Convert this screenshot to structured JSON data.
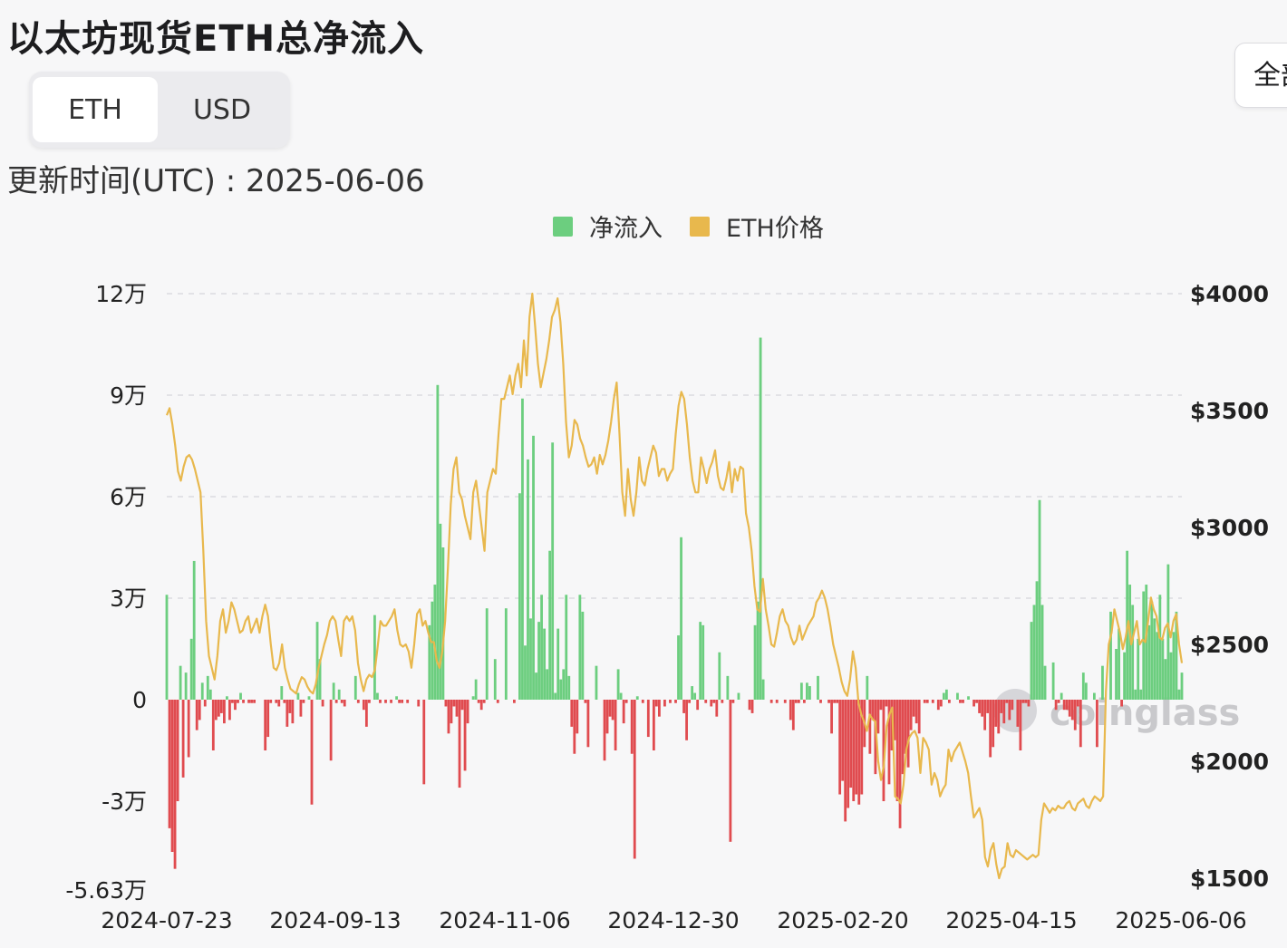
{
  "page": {
    "title": "以太坊现货ETH总净流入"
  },
  "toggle": {
    "eth_label": "ETH",
    "usd_label": "USD",
    "selected": "ETH"
  },
  "range": {
    "label": "全部"
  },
  "update": {
    "label": "更新时间(UTC)",
    "separator": " : ",
    "date": "2025-06-06"
  },
  "watermark": {
    "text": "coinglass"
  },
  "chart_data": {
    "type": "bar",
    "title": "以太坊现货ETH总净流入",
    "x_ticks": [
      "2024-07-23",
      "2024-09-13",
      "2024-11-06",
      "2024-12-30",
      "2025-02-20",
      "2025-04-15",
      "2025-06-06"
    ],
    "x_range": [
      "2024-07-23",
      "2025-06-06"
    ],
    "y_left": {
      "ticks": [
        120000,
        90000,
        60000,
        30000,
        0,
        -30000,
        -56300
      ],
      "tick_labels": [
        "12万",
        "9万",
        "6万",
        "3万",
        "0",
        "-3万",
        "-5.63万"
      ],
      "range": [
        -56300,
        120000
      ]
    },
    "y_right": {
      "ticks": [
        4000,
        3500,
        3000,
        2500,
        2000,
        1500
      ],
      "tick_labels": [
        "$4000",
        "$3500",
        "$3000",
        "$2500",
        "$2000",
        "$1500"
      ],
      "range": [
        1500,
        4000
      ]
    },
    "grid": true,
    "legend_position": "top-center",
    "colors": {
      "inflow": "#6cce7f",
      "outflow": "#e04b4f",
      "price": "#e8b84d"
    },
    "series": [
      {
        "name": "净流入",
        "kind": "bar",
        "axis": "left",
        "values": [
          31000,
          -38000,
          -45000,
          -50000,
          -30000,
          10000,
          -23000,
          8000,
          -17000,
          18000,
          41000,
          -9000,
          -6000,
          5000,
          -2000,
          7000,
          3000,
          -15000,
          -6000,
          -5000,
          -4000,
          -7000,
          1000,
          -6000,
          -1000,
          -3000,
          -1000,
          2000,
          -1000,
          0,
          -1000,
          -1000,
          -1000,
          0,
          0,
          0,
          -15000,
          -11000,
          -1000,
          0,
          -1000,
          -2000,
          4000,
          -1000,
          -8000,
          -4000,
          -7000,
          0,
          2000,
          -5000,
          -1000,
          0,
          1000,
          -31000,
          0,
          23000,
          12000,
          -2000,
          0,
          0,
          -18000,
          5000,
          -1000,
          3000,
          -1000,
          -2000,
          0,
          0,
          0,
          7000,
          -1000,
          0,
          -3000,
          -8000,
          -1000,
          0,
          25000,
          2000,
          -1000,
          0,
          -1000,
          0,
          -1000,
          0,
          1000,
          -1000,
          -1000,
          0,
          -1000,
          0,
          0,
          0,
          -2000,
          0,
          -25000,
          0,
          22000,
          29000,
          34000,
          93000,
          52000,
          45000,
          -2000,
          -10000,
          -7000,
          -2000,
          -5000,
          -26000,
          -3000,
          -21000,
          -7000,
          0,
          1000,
          6000,
          -1000,
          -3000,
          -1000,
          27000,
          0,
          0,
          12000,
          -1000,
          0,
          0,
          27000,
          0,
          0,
          -1000,
          0,
          61000,
          89000,
          16000,
          71000,
          24000,
          78000,
          8000,
          23000,
          31000,
          21000,
          9000,
          44000,
          76000,
          2000,
          21000,
          6000,
          9000,
          31000,
          7000,
          -8000,
          -16000,
          -10000,
          31000,
          26000,
          -1000,
          -14000,
          0,
          0,
          10000,
          0,
          0,
          -18000,
          -10000,
          -5000,
          -6000,
          -15000,
          9000,
          2000,
          -7000,
          -1000,
          0,
          -16000,
          -47000,
          1000,
          0,
          -1000,
          0,
          -11000,
          0,
          -15000,
          -2000,
          -5000,
          0,
          -2000,
          0,
          -1000,
          0,
          -1000,
          19000,
          48000,
          -4000,
          -12000,
          -1000,
          4000,
          2000,
          -3000,
          23000,
          22000,
          -1000,
          0,
          -2000,
          -1000,
          -5000,
          14000,
          -1000,
          0,
          7000,
          -42000,
          -1000,
          0,
          2000,
          0,
          0,
          0,
          -3000,
          -4000,
          22000,
          29000,
          107000,
          6000,
          0,
          0,
          -1000,
          0,
          -1000,
          0,
          0,
          -1000,
          0,
          -6000,
          -9000,
          -1000,
          -1000,
          5000,
          -1000,
          5000,
          4000,
          0,
          0,
          7000,
          -1000,
          0,
          0,
          -1000,
          -10000,
          -1000,
          -1000,
          -28000,
          -24000,
          -36000,
          -32000,
          -26000,
          -30000,
          -28000,
          -31000,
          -28000,
          -14000,
          7000,
          -16000,
          -6000,
          -22000,
          -10000,
          -3000,
          -30000,
          -2000,
          -25000,
          -15000,
          -12000,
          -30000,
          -38000,
          -22000,
          -16000,
          -20000,
          -9000,
          -5000,
          -7000,
          -10000,
          0,
          -1000,
          -1000,
          0,
          -1000,
          0,
          -3000,
          -2000,
          2000,
          3000,
          -1000,
          0,
          0,
          2000,
          -1000,
          -1000,
          0,
          1000,
          0,
          -2000,
          -1000,
          -4000,
          -5000,
          -9000,
          -4000,
          -17000,
          -14000,
          -8000,
          -10000,
          -4000,
          -7000,
          -1000,
          -6000,
          -3000,
          0,
          -8000,
          -15000,
          -1000,
          -1000,
          -2000,
          23000,
          28000,
          35000,
          59000,
          28000,
          10000,
          0,
          0,
          11000,
          -3000,
          -1000,
          2000,
          -3000,
          -3000,
          -5000,
          -6000,
          -9000,
          -2000,
          -14000,
          8000,
          5000,
          0,
          0,
          2000,
          -14000,
          0,
          10000,
          0,
          0,
          26000,
          0,
          15000,
          21000,
          -2000,
          14000,
          44000,
          34000,
          28000,
          3000,
          18000,
          3000,
          32000,
          34000,
          22000,
          29000,
          24000,
          20000,
          31000,
          18000,
          12000,
          40000,
          14000,
          20000,
          26000,
          3000,
          8000
        ]
      },
      {
        "name": "ETH价格",
        "kind": "line",
        "axis": "right",
        "values": [
          3480,
          3510,
          3440,
          3350,
          3240,
          3200,
          3260,
          3300,
          3310,
          3290,
          3250,
          3200,
          3150,
          2900,
          2600,
          2450,
          2400,
          2350,
          2450,
          2600,
          2650,
          2550,
          2600,
          2680,
          2650,
          2600,
          2550,
          2560,
          2600,
          2620,
          2550,
          2580,
          2610,
          2550,
          2620,
          2670,
          2620,
          2500,
          2400,
          2390,
          2420,
          2500,
          2400,
          2350,
          2310,
          2300,
          2290,
          2330,
          2360,
          2350,
          2320,
          2300,
          2290,
          2330,
          2400,
          2450,
          2500,
          2540,
          2600,
          2620,
          2600,
          2520,
          2450,
          2600,
          2620,
          2600,
          2620,
          2560,
          2420,
          2350,
          2300,
          2350,
          2370,
          2360,
          2390,
          2490,
          2600,
          2580,
          2580,
          2600,
          2620,
          2650,
          2560,
          2500,
          2490,
          2500,
          2470,
          2400,
          2500,
          2630,
          2650,
          2580,
          2600,
          2550,
          2510,
          2510,
          2430,
          2400,
          2470,
          2600,
          2830,
          3100,
          3250,
          3300,
          3150,
          3120,
          3050,
          3000,
          2950,
          3150,
          3200,
          3100,
          3000,
          2900,
          3150,
          3200,
          3250,
          3230,
          3400,
          3550,
          3550,
          3600,
          3650,
          3570,
          3650,
          3700,
          3600,
          3800,
          3650,
          3900,
          4000,
          3860,
          3700,
          3600,
          3660,
          3720,
          3800,
          3900,
          3930,
          3980,
          3880,
          3700,
          3450,
          3300,
          3350,
          3460,
          3440,
          3380,
          3350,
          3300,
          3260,
          3270,
          3300,
          3230,
          3310,
          3270,
          3310,
          3370,
          3450,
          3550,
          3620,
          3400,
          3150,
          3050,
          3250,
          3120,
          3050,
          3150,
          3300,
          3200,
          3180,
          3250,
          3300,
          3350,
          3320,
          3220,
          3250,
          3250,
          3200,
          3230,
          3250,
          3400,
          3520,
          3580,
          3550,
          3440,
          3300,
          3200,
          3150,
          3150,
          3300,
          3250,
          3190,
          3250,
          3280,
          3330,
          3220,
          3170,
          3160,
          3210,
          3280,
          3150,
          3250,
          3200,
          3260,
          3250,
          3060,
          3000,
          2900,
          2750,
          2650,
          2640,
          2780,
          2650,
          2580,
          2500,
          2490,
          2550,
          2620,
          2650,
          2600,
          2580,
          2530,
          2500,
          2520,
          2580,
          2520,
          2550,
          2580,
          2600,
          2620,
          2680,
          2700,
          2730,
          2700,
          2650,
          2580,
          2500,
          2450,
          2400,
          2340,
          2300,
          2280,
          2350,
          2470,
          2400,
          2250,
          2200,
          2170,
          2130,
          2200,
          2180,
          2170,
          2000,
          1920,
          1980,
          2150,
          2200,
          2230,
          1850,
          1840,
          1820,
          1900,
          2050,
          2100,
          2120,
          2130,
          2100,
          1950,
          2100,
          2080,
          2050,
          1900,
          1950,
          1920,
          1850,
          1880,
          1900,
          2050,
          2000,
          2040,
          2060,
          2080,
          2040,
          2000,
          1950,
          1850,
          1760,
          1780,
          1800,
          1750,
          1590,
          1550,
          1620,
          1650,
          1560,
          1500,
          1540,
          1550,
          1650,
          1600,
          1590,
          1620,
          1610,
          1600,
          1590,
          1580,
          1590,
          1600,
          1590,
          1600,
          1750,
          1820,
          1800,
          1780,
          1800,
          1790,
          1810,
          1800,
          1800,
          1820,
          1830,
          1800,
          1790,
          1820,
          1830,
          1840,
          1810,
          1800,
          1830,
          1850,
          1840,
          1830,
          1850,
          2300,
          2500,
          2550,
          2650,
          2600,
          2550,
          2480,
          2530,
          2600,
          2500,
          2550,
          2600,
          2500,
          2520,
          2510,
          2600,
          2700,
          2650,
          2620,
          2530,
          2520,
          2570,
          2590,
          2530,
          2600,
          2630,
          2500,
          2420
        ]
      }
    ]
  }
}
